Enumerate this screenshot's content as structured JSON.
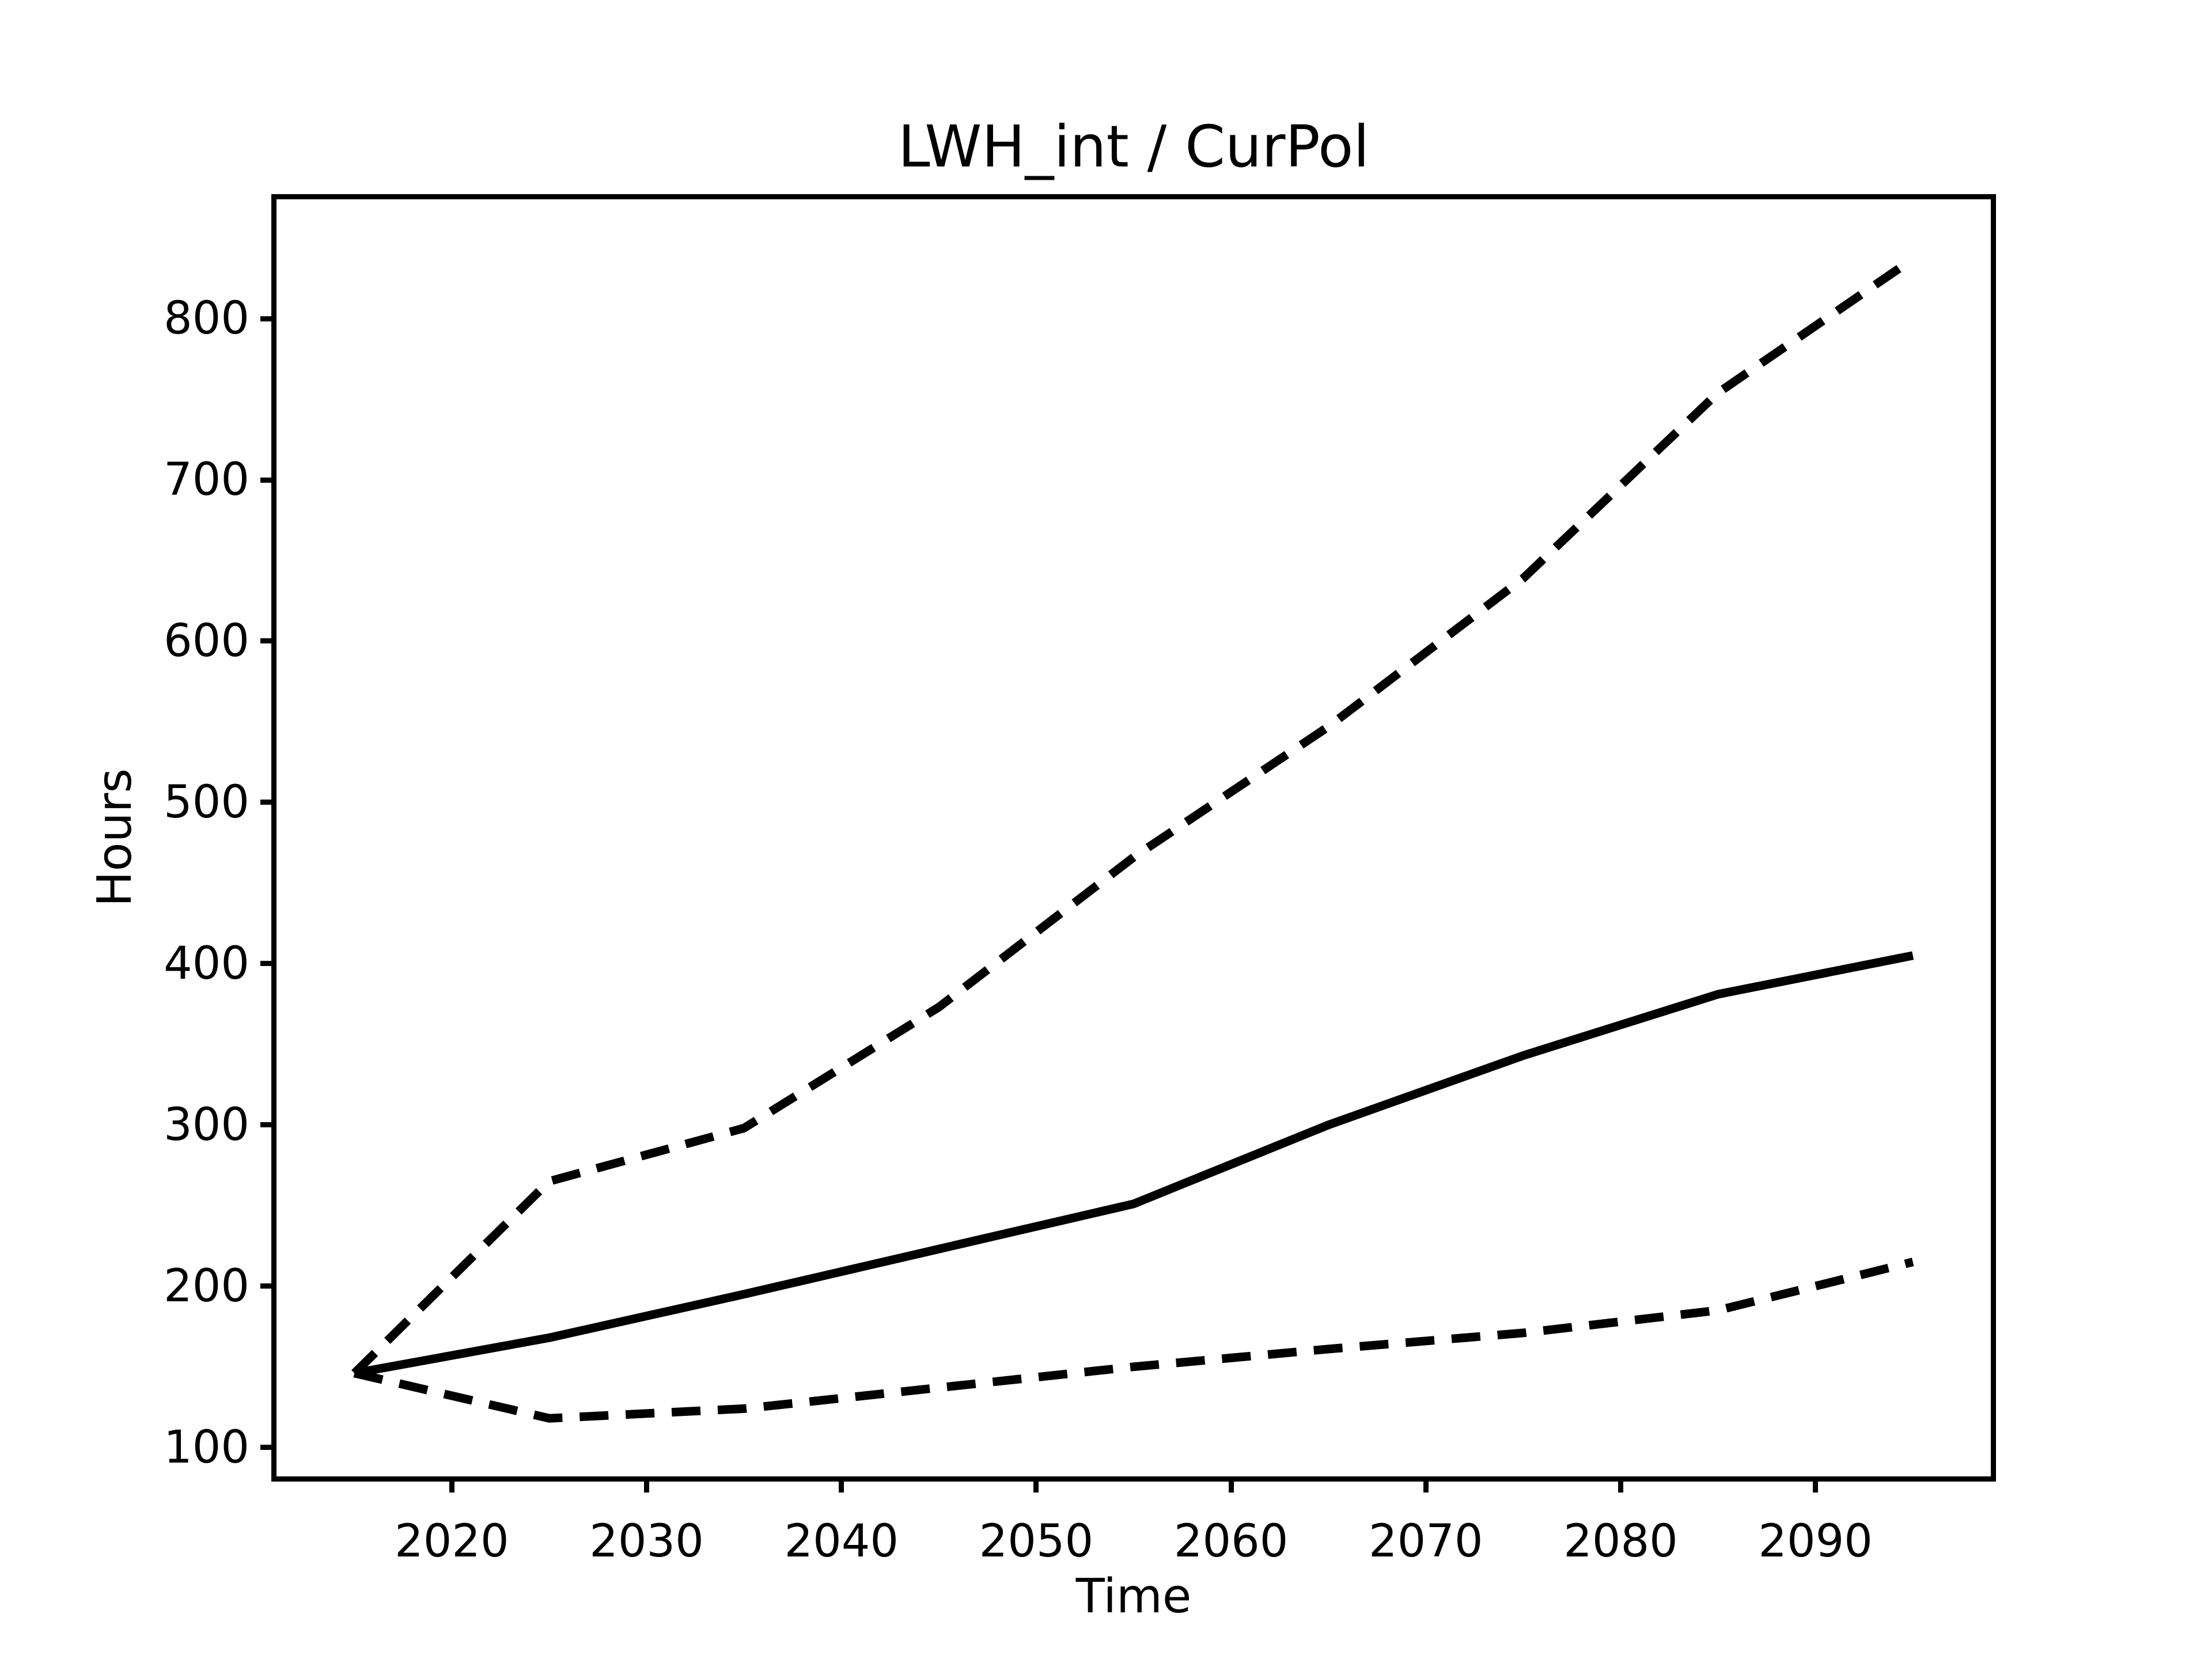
{
  "chart_data": {
    "type": "line",
    "title": "LWH_int / CurPol",
    "xlabel": "Time",
    "ylabel": "Hours",
    "xlim": [
      2011,
      2099
    ],
    "ylim": [
      82,
      874
    ],
    "xticks": [
      2020,
      2030,
      2040,
      2050,
      2060,
      2070,
      2080,
      2090
    ],
    "yticks": [
      100,
      200,
      300,
      400,
      500,
      600,
      700,
      800
    ],
    "grid": false,
    "legend": "none",
    "background_color": "#ffffff",
    "line_color": "#000000",
    "x": [
      2015,
      2025,
      2035,
      2045,
      2055,
      2065,
      2075,
      2085,
      2095
    ],
    "series": [
      {
        "name": "upper-bound",
        "style": "dashed",
        "values": [
          146,
          265,
          298,
          373,
          466,
          547,
          639,
          754,
          837
        ]
      },
      {
        "name": "mean",
        "style": "solid",
        "values": [
          146,
          168,
          195,
          223,
          251,
          300,
          343,
          381,
          405
        ]
      },
      {
        "name": "lower-bound",
        "style": "dashed",
        "values": [
          146,
          118,
          124,
          137,
          150,
          161,
          171,
          185,
          215
        ]
      }
    ]
  }
}
